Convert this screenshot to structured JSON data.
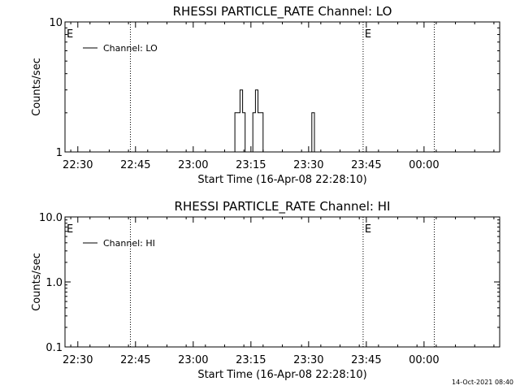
{
  "footer": {
    "timestamp": "14-Oct-2021 08:40"
  },
  "chart_data": [
    {
      "type": "line",
      "title": "RHESSI PARTICLE_RATE Channel: LO",
      "xlabel": "Start Time (16-Apr-08 22:28:10)",
      "ylabel": "Counts/sec",
      "yscale": "log",
      "ylim": [
        1,
        10
      ],
      "y_ticks": [
        "1",
        "10"
      ],
      "x_ticks": [
        "22:30",
        "22:45",
        "23:00",
        "23:15",
        "23:30",
        "23:45",
        "00:00"
      ],
      "xlim_minutes_from_start": [
        -1.5,
        111.5
      ],
      "legend": {
        "position": "top-left",
        "entries": [
          "Channel: LO"
        ]
      },
      "event_markers": [
        {
          "time": "22:43:40",
          "label": ""
        },
        {
          "time": "23:44:10",
          "label": "E"
        },
        {
          "time": "00:02:40",
          "label": ""
        }
      ],
      "start_marker_label": "E",
      "series": [
        {
          "name": "Channel: LO",
          "points": [
            [
              "23:10:10",
              1
            ],
            [
              "23:10:50",
              2
            ],
            [
              "23:11:30",
              2
            ],
            [
              "23:12:10",
              3
            ],
            [
              "23:12:50",
              2
            ],
            [
              "23:13:30",
              1
            ],
            [
              "23:14:50",
              1
            ],
            [
              "23:15:30",
              2
            ],
            [
              "23:16:10",
              3
            ],
            [
              "23:16:50",
              2
            ],
            [
              "23:17:30",
              2
            ],
            [
              "23:18:10",
              1
            ],
            [
              "23:30:10",
              1
            ],
            [
              "23:30:50",
              2
            ],
            [
              "23:31:30",
              1
            ]
          ]
        }
      ]
    },
    {
      "type": "line",
      "title": "RHESSI PARTICLE_RATE Channel: HI",
      "xlabel": "Start Time (16-Apr-08 22:28:10)",
      "ylabel": "Counts/sec",
      "yscale": "log",
      "ylim": [
        0.1,
        10
      ],
      "y_ticks": [
        "0.1",
        "1.0",
        "10.0"
      ],
      "x_ticks": [
        "22:30",
        "22:45",
        "23:00",
        "23:15",
        "23:30",
        "23:45",
        "00:00"
      ],
      "xlim_minutes_from_start": [
        -1.5,
        111.5
      ],
      "legend": {
        "position": "top-left",
        "entries": [
          "Channel: HI"
        ]
      },
      "event_markers": [
        {
          "time": "22:43:40",
          "label": ""
        },
        {
          "time": "23:44:10",
          "label": "E"
        },
        {
          "time": "00:02:40",
          "label": ""
        }
      ],
      "start_marker_label": "E",
      "series": [
        {
          "name": "Channel: HI",
          "points": []
        }
      ]
    }
  ]
}
